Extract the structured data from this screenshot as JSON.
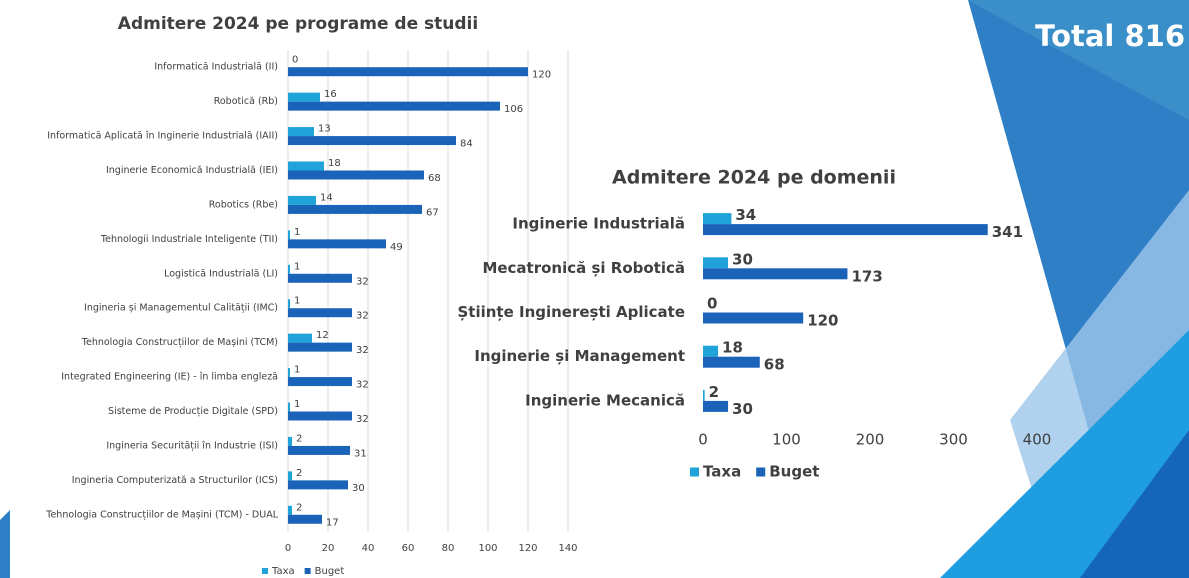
{
  "header": {
    "title": "Total 816"
  },
  "chart_data": [
    {
      "type": "bar",
      "orientation": "horizontal",
      "title": "Admitere 2024 pe programe de studii",
      "categories": [
        "Informatică Industrială (II)",
        "Robotică (Rb)",
        "Informatică Aplicată în Inginerie Industrială (IAII)",
        "Inginerie Economică Industrială (IEI)",
        "Robotics (Rbe)",
        "Tehnologii Industriale Inteligente (TII)",
        "Logistică Industrială (LI)",
        "Ingineria și Managementul Calității (IMC)",
        "Tehnologia Construcțiilor de Mașini (TCM)",
        "Integrated Engineering (IE) - în limba engleză",
        "Sisteme de Producție Digitale (SPD)",
        "Ingineria Securității în Industrie (ISI)",
        "Ingineria Computerizată a Structurilor (ICS)",
        "Tehnologia Construcțiilor de Mașini (TCM) - DUAL"
      ],
      "series": [
        {
          "name": "Taxa",
          "color": "#1fa3d8",
          "values": [
            0,
            16,
            13,
            18,
            14,
            1,
            1,
            1,
            12,
            1,
            1,
            2,
            2,
            2
          ]
        },
        {
          "name": "Buget",
          "color": "#1b63b8",
          "values": [
            120,
            106,
            84,
            68,
            67,
            49,
            32,
            32,
            32,
            32,
            32,
            31,
            30,
            17
          ]
        }
      ],
      "xlim": [
        0,
        140
      ],
      "xticks": [
        0,
        20,
        40,
        60,
        80,
        100,
        120,
        140
      ],
      "grid": true,
      "legend": "bottom"
    },
    {
      "type": "bar",
      "orientation": "horizontal",
      "title": "Admitere 2024 pe domenii",
      "categories": [
        "Inginerie Industrială",
        "Mecatronică și Robotică",
        "Științe Inginerești Aplicate",
        "Inginerie și Management",
        "Inginerie Mecanică"
      ],
      "series": [
        {
          "name": "Taxa",
          "color": "#1fa3d8",
          "values": [
            34,
            30,
            0,
            18,
            2
          ]
        },
        {
          "name": "Buget",
          "color": "#1b63b8",
          "values": [
            341,
            173,
            120,
            68,
            30
          ]
        }
      ],
      "xlim": [
        0,
        400
      ],
      "xticks": [
        0,
        100,
        200,
        300,
        400
      ],
      "grid": false,
      "legend": "bottom"
    }
  ]
}
